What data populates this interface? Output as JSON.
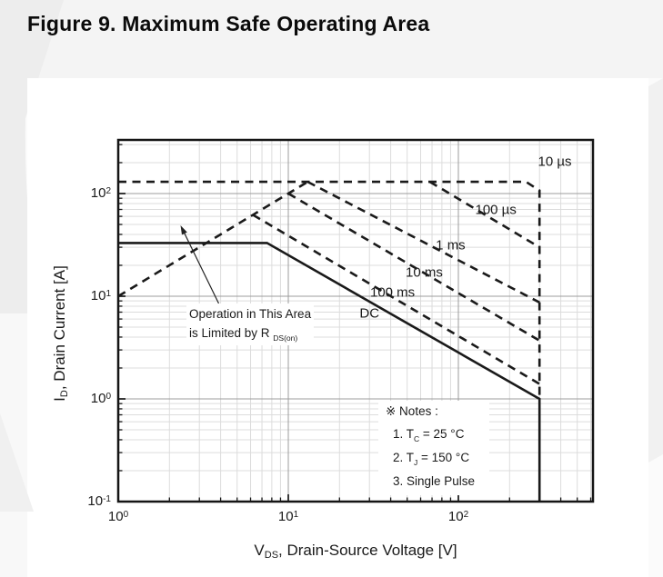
{
  "page": {
    "title": "Figure 9. Maximum Safe Operating Area"
  },
  "chart_data": {
    "type": "line",
    "title": "Maximum Safe Operating Area",
    "x_scale": "log",
    "y_scale": "log",
    "xlim": [
      1,
      620
    ],
    "ylim": [
      0.1,
      330
    ],
    "grid": "on",
    "x_axis": {
      "label_main": "V",
      "label_sub": "DS",
      "label_rest": ", Drain-Source Voltage [V]",
      "ticks": [
        {
          "base": "10",
          "exp": "0",
          "value": 1
        },
        {
          "base": "10",
          "exp": "1",
          "value": 10
        },
        {
          "base": "10",
          "exp": "2",
          "value": 100
        }
      ]
    },
    "y_axis": {
      "label_main": "I",
      "label_sub": "D",
      "label_rest": ", Drain Current [A]",
      "ticks": [
        {
          "base": "10",
          "exp": "2",
          "value": 100
        },
        {
          "base": "10",
          "exp": "1",
          "value": 10
        },
        {
          "base": "10",
          "exp": "0",
          "value": 1
        },
        {
          "base": "10",
          "exp": "-1",
          "value": 0.1
        }
      ]
    },
    "series": [
      {
        "name": "10 µs",
        "style": "dashed",
        "points": [
          [
            1,
            130
          ],
          [
            250,
            130
          ],
          [
            300,
            107
          ],
          [
            300,
            1
          ]
        ]
      },
      {
        "name": "100 µs",
        "style": "dashed",
        "points": [
          [
            68,
            130
          ],
          [
            300,
            30
          ]
        ]
      },
      {
        "name": "1 ms",
        "style": "dashed",
        "points": [
          [
            13,
            130
          ],
          [
            300,
            8.7
          ]
        ]
      },
      {
        "name": "10 ms",
        "style": "dashed",
        "points": [
          [
            10,
            100
          ],
          [
            300,
            3.7
          ]
        ]
      },
      {
        "name": "100 ms",
        "style": "dashed",
        "points": [
          [
            6.2,
            62
          ],
          [
            300,
            1.4
          ]
        ]
      },
      {
        "name": "DC",
        "style": "solid",
        "points": [
          [
            1,
            33
          ],
          [
            7.5,
            33
          ],
          [
            300,
            1
          ],
          [
            300,
            0.1
          ]
        ]
      },
      {
        "name": "RDS(on) limit line",
        "style": "dashed",
        "points": [
          [
            1,
            10
          ],
          [
            13,
            130
          ]
        ]
      }
    ],
    "curve_labels": [
      {
        "text": "10 µs",
        "v": 369,
        "i": 204
      },
      {
        "text": "100 µs",
        "v": 166,
        "i": 69
      },
      {
        "text": "1 ms",
        "v": 90,
        "i": 31
      },
      {
        "text": "10 ms",
        "v": 63,
        "i": 17
      },
      {
        "text": "100 ms",
        "v": 41,
        "i": 10.9
      },
      {
        "text": "DC",
        "v": 30,
        "i": 6.8
      }
    ],
    "annotation": {
      "line1": "Operation in This Area",
      "line2_main": "is Limited by R",
      "line2_sub": "DS(on)"
    },
    "notes": {
      "header": "※ Notes :",
      "items": [
        {
          "main": "1. T",
          "sub": "C",
          "rest": " = 25 °C"
        },
        {
          "main": "2. T",
          "sub": "J",
          "rest": " = 150 °C"
        },
        {
          "main": "3. Single Pulse",
          "sub": "",
          "rest": ""
        }
      ]
    },
    "colors": {
      "line": "#1a1a1a",
      "frame": "#151515",
      "grid_major": "#9c9c9c",
      "grid_minor": "#dcdcdc"
    }
  }
}
